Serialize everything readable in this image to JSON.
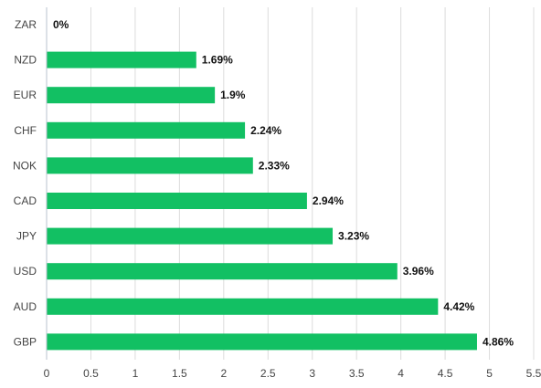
{
  "chart_data": {
    "type": "bar",
    "orientation": "horizontal",
    "title": "",
    "xlabel": "",
    "ylabel": "",
    "categories": [
      "ZAR",
      "NZD",
      "EUR",
      "CHF",
      "NOK",
      "CAD",
      "JPY",
      "USD",
      "AUD",
      "GBP"
    ],
    "values": [
      0,
      1.69,
      1.9,
      2.24,
      2.33,
      2.94,
      3.23,
      3.96,
      4.42,
      4.86
    ],
    "data_labels": [
      "0%",
      "1.69%",
      "1.9%",
      "2.24%",
      "2.33%",
      "2.94%",
      "3.23%",
      "3.96%",
      "4.42%",
      "4.86%"
    ],
    "xlim": [
      0,
      5.5
    ],
    "x_ticks": [
      "0",
      "0.5",
      "1",
      "1.5",
      "2",
      "2.5",
      "3",
      "3.5",
      "4",
      "4.5",
      "5",
      "5.5"
    ],
    "grid": true,
    "legend": "none",
    "bar_color": "#12c063"
  }
}
